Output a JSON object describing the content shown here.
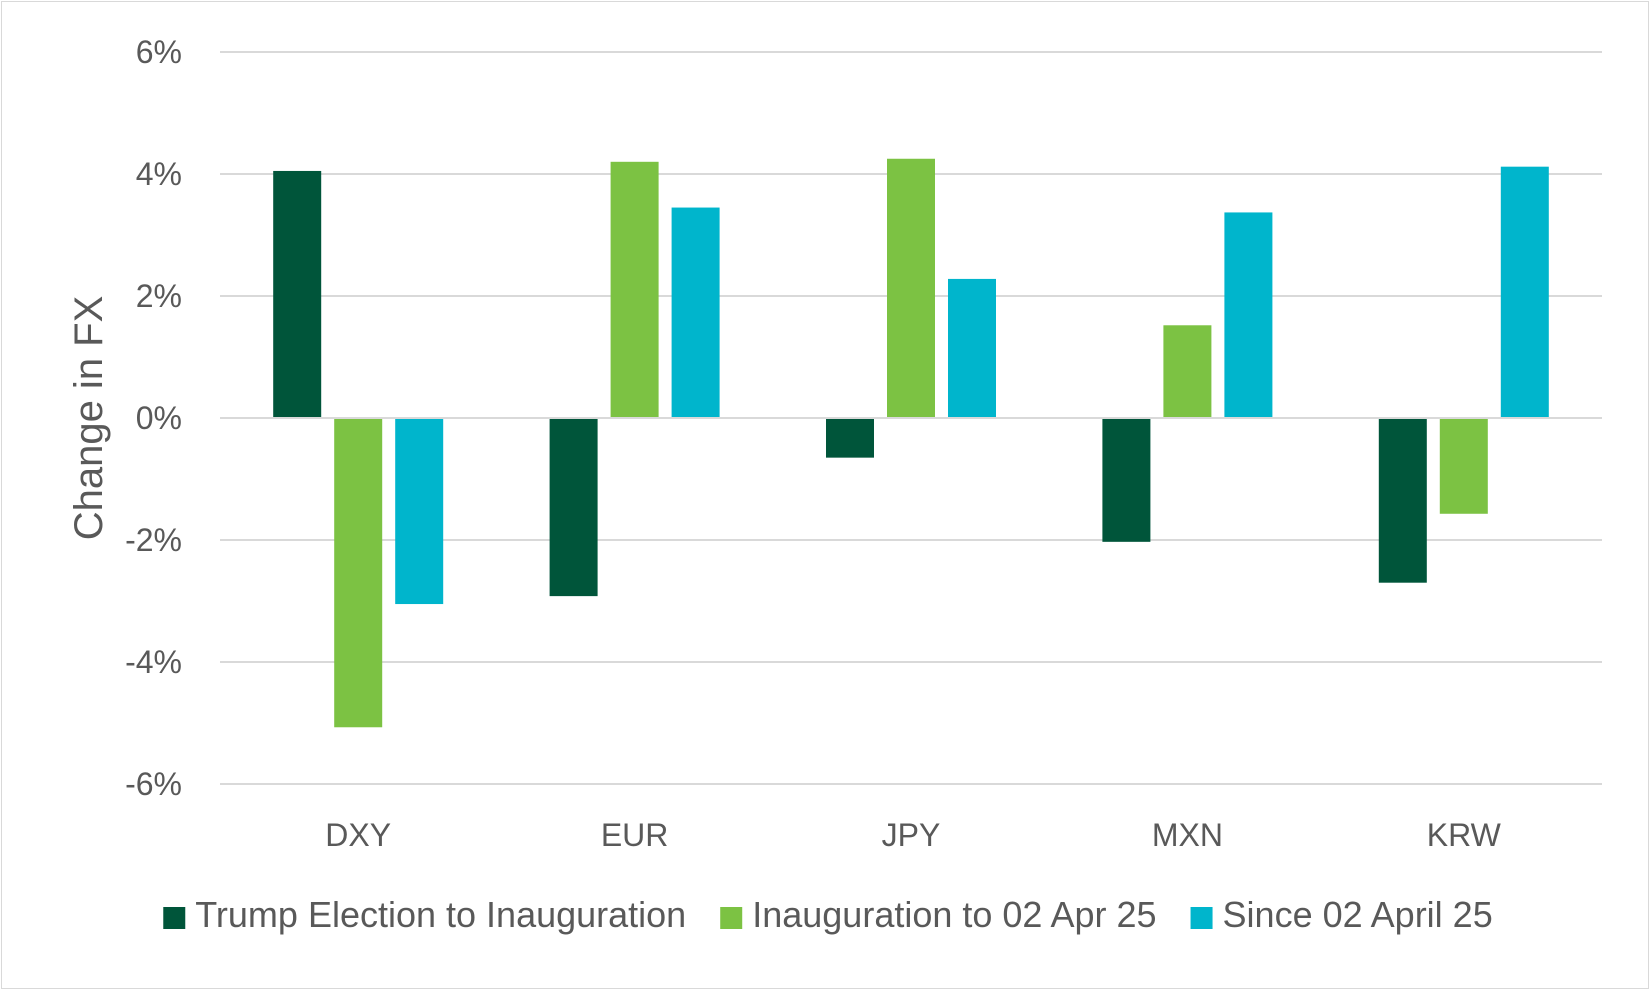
{
  "chart_data": {
    "type": "bar",
    "title": "",
    "xlabel": "",
    "ylabel": "Change in FX",
    "ylim": [
      -6,
      6
    ],
    "yticks": [
      6,
      4,
      2,
      0,
      -2,
      -4,
      -6
    ],
    "ytick_labels": [
      "6%",
      "4%",
      "2%",
      "0%",
      "-2%",
      "-4%",
      "-6%"
    ],
    "grid": true,
    "legend_position": "bottom",
    "categories": [
      "DXY",
      "EUR",
      "JPY",
      "MXN",
      "KRW"
    ],
    "series": [
      {
        "name": "Trump Election to Inauguration",
        "color": "#00553a",
        "values": [
          4.05,
          -2.92,
          -0.65,
          -2.03,
          -2.7
        ]
      },
      {
        "name": "Inauguration to 02 Apr 25",
        "color": "#7cc243",
        "values": [
          -5.07,
          4.2,
          4.25,
          1.52,
          -1.57
        ]
      },
      {
        "name": "Since 02 April 25",
        "color": "#00b5cc",
        "values": [
          -3.05,
          3.45,
          2.28,
          3.37,
          4.12
        ]
      }
    ]
  }
}
